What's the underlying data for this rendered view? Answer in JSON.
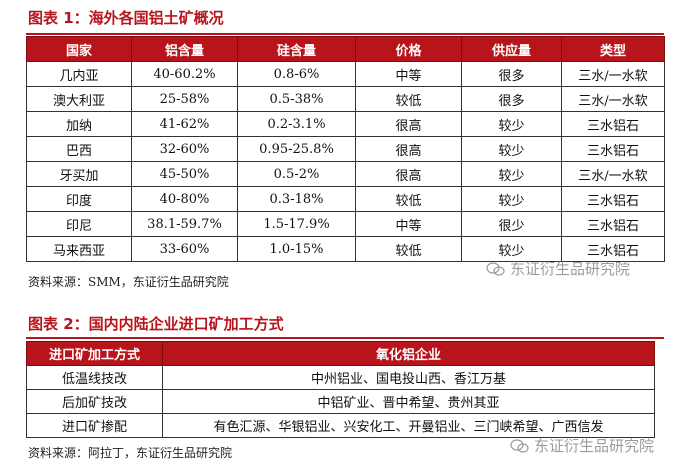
{
  "table1": {
    "title": "图表 1：海外各国铝土矿概况",
    "headers": [
      "国家",
      "铝含量",
      "硅含量",
      "价格",
      "供应量",
      "类型"
    ],
    "rows": [
      [
        "几内亚",
        "40-60.2%",
        "0.8-6%",
        "中等",
        "很多",
        "三水/一水软"
      ],
      [
        "澳大利亚",
        "25-58%",
        "0.5-38%",
        "较低",
        "很多",
        "三水/一水软"
      ],
      [
        "加纳",
        "41-62%",
        "0.2-3.1%",
        "很高",
        "较少",
        "三水铝石"
      ],
      [
        "巴西",
        "32-60%",
        "0.95-25.8%",
        "很高",
        "较少",
        "三水铝石"
      ],
      [
        "牙买加",
        "45-50%",
        "0.5-2%",
        "很高",
        "较少",
        "三水/一水软"
      ],
      [
        "印度",
        "40-80%",
        "0.3-18%",
        "较低",
        "较少",
        "三水铝石"
      ],
      [
        "印尼",
        "38.1-59.7%",
        "1.5-17.9%",
        "中等",
        "很少",
        "三水铝石"
      ],
      [
        "马来西亚",
        "33-60%",
        "1.0-15%",
        "较低",
        "较少",
        "三水铝石"
      ]
    ],
    "source": "资料来源：SMM，东证衍生品研究院"
  },
  "table2": {
    "title": "图表 2：国内内陆企业进口矿加工方式",
    "headers": [
      "进口矿加工方式",
      "氧化铝企业"
    ],
    "rows": [
      [
        "低温线技改",
        "中州铝业、国电投山西、香江万基"
      ],
      [
        "后加矿技改",
        "中铝矿业、晋中希望、贵州其亚"
      ],
      [
        "进口矿掺配",
        "有色汇源、华银铝业、兴安化工、开曼铝业、三门峡希望、广西信发"
      ]
    ],
    "source": "资料来源：阿拉丁，东证衍生品研究院"
  },
  "watermark": {
    "text": "东证衍生品研究院",
    "icon": "wechat-icon"
  }
}
